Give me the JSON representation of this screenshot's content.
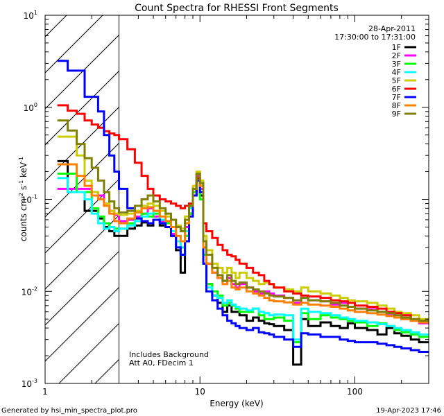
{
  "chart_data": {
    "type": "line",
    "title": "Count Spectra for RHESSI Front Segments",
    "xlabel": "Energy (keV)",
    "ylabel": "counts cm-2 s-1 keV-1",
    "xscale": "log",
    "yscale": "log",
    "xlim": [
      1,
      300
    ],
    "ylim": [
      0.001,
      10
    ],
    "x_ticks": [
      "1",
      "10",
      "100"
    ],
    "y_ticks": [
      {
        "base": "10",
        "exp": "-3"
      },
      {
        "base": "10",
        "exp": "-2"
      },
      {
        "base": "10",
        "exp": "-1"
      },
      {
        "base": "10",
        "exp": "0"
      },
      {
        "base": "10",
        "exp": "1"
      }
    ],
    "hatched_region_upper_keV": 3,
    "date": "28-Apr-2011",
    "time_range": "17:30:00 to 17:31:00",
    "notes": [
      "Includes Background",
      "Att A0, FDecim 1"
    ],
    "footer_left": "Generated by hsi_min_spectra_plot.pro",
    "footer_right": "19-Apr-2023 17:46",
    "energy_edges": [
      1.2,
      1.4,
      1.6,
      1.8,
      2.0,
      2.2,
      2.4,
      2.6,
      2.8,
      3.0,
      3.4,
      3.8,
      4.2,
      4.6,
      5.0,
      5.5,
      6.0,
      6.5,
      7.0,
      7.5,
      8.0,
      8.5,
      9.0,
      9.5,
      10.0,
      10.5,
      11.0,
      12,
      13,
      14,
      15,
      16,
      17,
      18,
      20,
      22,
      24,
      26,
      28,
      30,
      35,
      40,
      45,
      50,
      60,
      70,
      80,
      90,
      100,
      120,
      140,
      160,
      180,
      200,
      230,
      260,
      300
    ],
    "series": [
      {
        "name": "1F",
        "color": "#000000",
        "values": [
          0.26,
          0.12,
          0.12,
          0.075,
          0.075,
          0.062,
          0.05,
          0.045,
          0.04,
          0.04,
          0.048,
          0.052,
          0.056,
          0.052,
          0.06,
          0.052,
          0.05,
          0.04,
          0.028,
          0.016,
          0.04,
          0.07,
          0.12,
          0.17,
          0.11,
          0.02,
          0.012,
          0.009,
          0.0075,
          0.006,
          0.007,
          0.006,
          0.006,
          0.0055,
          0.0048,
          0.0052,
          0.0048,
          0.0045,
          0.0044,
          0.0042,
          0.0038,
          0.0016,
          0.005,
          0.0042,
          0.0046,
          0.0042,
          0.004,
          0.0045,
          0.004,
          0.0038,
          0.0034,
          0.004,
          0.0035,
          0.0033,
          0.003,
          0.0028
        ]
      },
      {
        "name": "2F",
        "color": "#ff00ff",
        "values": [
          0.13,
          0.13,
          0.13,
          0.13,
          0.12,
          0.11,
          0.09,
          0.075,
          0.068,
          0.058,
          0.06,
          0.065,
          0.07,
          0.08,
          0.065,
          0.058,
          0.05,
          0.042,
          0.035,
          0.03,
          0.05,
          0.08,
          0.12,
          0.18,
          0.13,
          0.03,
          0.02,
          0.016,
          0.014,
          0.013,
          0.014,
          0.012,
          0.011,
          0.012,
          0.011,
          0.01,
          0.0095,
          0.01,
          0.0095,
          0.009,
          0.0085,
          0.0075,
          0.0085,
          0.008,
          0.0078,
          0.0072,
          0.0075,
          0.0068,
          0.0065,
          0.0064,
          0.006,
          0.0055,
          0.0052,
          0.005,
          0.0048,
          0.0045
        ]
      },
      {
        "name": "3F",
        "color": "#00ff00",
        "values": [
          0.19,
          0.19,
          0.12,
          0.12,
          0.08,
          0.065,
          0.055,
          0.05,
          0.048,
          0.048,
          0.055,
          0.062,
          0.07,
          0.065,
          0.07,
          0.06,
          0.055,
          0.045,
          0.035,
          0.025,
          0.04,
          0.07,
          0.12,
          0.17,
          0.1,
          0.025,
          0.012,
          0.01,
          0.009,
          0.007,
          0.0075,
          0.007,
          0.0065,
          0.006,
          0.006,
          0.0065,
          0.0055,
          0.005,
          0.005,
          0.0052,
          0.0048,
          0.0028,
          0.0058,
          0.005,
          0.0055,
          0.0052,
          0.005,
          0.0048,
          0.0046,
          0.0042,
          0.0045,
          0.0042,
          0.0038,
          0.0036,
          0.0034,
          0.0032
        ]
      },
      {
        "name": "4F",
        "color": "#00ffff",
        "values": [
          0.17,
          0.12,
          0.12,
          0.1,
          0.07,
          0.055,
          0.048,
          0.05,
          0.045,
          0.048,
          0.052,
          0.058,
          0.065,
          0.07,
          0.075,
          0.06,
          0.05,
          0.045,
          0.035,
          0.03,
          0.045,
          0.08,
          0.13,
          0.19,
          0.12,
          0.02,
          0.011,
          0.009,
          0.0085,
          0.0075,
          0.008,
          0.0072,
          0.0068,
          0.0065,
          0.0062,
          0.0065,
          0.006,
          0.0058,
          0.0055,
          0.0056,
          0.0055,
          0.003,
          0.0065,
          0.006,
          0.0058,
          0.0055,
          0.0052,
          0.005,
          0.0048,
          0.0046,
          0.0044,
          0.0042,
          0.004,
          0.0038,
          0.0036,
          0.0034
        ]
      },
      {
        "name": "5F",
        "color": "#cccc00",
        "values": [
          0.48,
          0.48,
          0.3,
          0.16,
          0.12,
          0.1,
          0.09,
          0.075,
          0.07,
          0.068,
          0.07,
          0.075,
          0.085,
          0.09,
          0.085,
          0.075,
          0.065,
          0.06,
          0.052,
          0.048,
          0.065,
          0.09,
          0.14,
          0.2,
          0.16,
          0.04,
          0.028,
          0.02,
          0.018,
          0.016,
          0.018,
          0.016,
          0.014,
          0.016,
          0.014,
          0.013,
          0.012,
          0.0125,
          0.012,
          0.011,
          0.0105,
          0.01,
          0.011,
          0.01,
          0.0095,
          0.009,
          0.0085,
          0.008,
          0.0078,
          0.0075,
          0.007,
          0.0065,
          0.006,
          0.0058,
          0.0055,
          0.005
        ]
      },
      {
        "name": "6F",
        "color": "#ff0000",
        "values": [
          1.05,
          0.92,
          0.85,
          0.72,
          0.65,
          0.6,
          0.55,
          0.52,
          0.5,
          0.45,
          0.35,
          0.25,
          0.18,
          0.13,
          0.11,
          0.1,
          0.095,
          0.09,
          0.085,
          0.08,
          0.085,
          0.09,
          0.11,
          0.17,
          0.14,
          0.055,
          0.045,
          0.038,
          0.032,
          0.028,
          0.025,
          0.024,
          0.022,
          0.02,
          0.018,
          0.016,
          0.015,
          0.013,
          0.012,
          0.011,
          0.01,
          0.0095,
          0.009,
          0.0088,
          0.0085,
          0.008,
          0.0078,
          0.0075,
          0.007,
          0.0068,
          0.0065,
          0.006,
          0.0058,
          0.0055,
          0.005,
          0.0048
        ]
      },
      {
        "name": "7F",
        "color": "#0000ff",
        "values": [
          3.2,
          2.5,
          2.5,
          1.3,
          1.3,
          0.9,
          0.5,
          0.3,
          0.2,
          0.13,
          0.08,
          0.062,
          0.058,
          0.055,
          0.06,
          0.055,
          0.05,
          0.04,
          0.03,
          0.025,
          0.035,
          0.065,
          0.11,
          0.16,
          0.12,
          0.02,
          0.01,
          0.008,
          0.0065,
          0.0055,
          0.0048,
          0.0045,
          0.0042,
          0.004,
          0.0038,
          0.004,
          0.0036,
          0.0035,
          0.0034,
          0.0032,
          0.003,
          0.0025,
          0.0035,
          0.0034,
          0.0032,
          0.0032,
          0.003,
          0.0029,
          0.0028,
          0.0028,
          0.0027,
          0.0026,
          0.0025,
          0.0024,
          0.0023,
          0.0022
        ]
      },
      {
        "name": "8F",
        "color": "#ff8000",
        "values": [
          0.24,
          0.24,
          0.18,
          0.14,
          0.11,
          0.1,
          0.085,
          0.07,
          0.058,
          0.055,
          0.062,
          0.072,
          0.08,
          0.082,
          0.075,
          0.065,
          0.058,
          0.05,
          0.04,
          0.035,
          0.055,
          0.085,
          0.13,
          0.19,
          0.14,
          0.03,
          0.02,
          0.016,
          0.014,
          0.012,
          0.013,
          0.011,
          0.0105,
          0.011,
          0.01,
          0.0095,
          0.009,
          0.0085,
          0.008,
          0.0078,
          0.0076,
          0.0072,
          0.0075,
          0.0072,
          0.007,
          0.0068,
          0.0065,
          0.0062,
          0.006,
          0.0058,
          0.0056,
          0.0054,
          0.0052,
          0.005,
          0.0048,
          0.0046
        ]
      },
      {
        "name": "9F",
        "color": "#808000",
        "values": [
          0.72,
          0.56,
          0.4,
          0.28,
          0.22,
          0.16,
          0.12,
          0.095,
          0.08,
          0.072,
          0.075,
          0.085,
          0.1,
          0.11,
          0.095,
          0.08,
          0.07,
          0.06,
          0.05,
          0.045,
          0.06,
          0.085,
          0.13,
          0.19,
          0.15,
          0.035,
          0.025,
          0.018,
          0.015,
          0.013,
          0.015,
          0.013,
          0.012,
          0.0125,
          0.011,
          0.0105,
          0.01,
          0.0095,
          0.009,
          0.0088,
          0.0085,
          0.008,
          0.0085,
          0.008,
          0.0078,
          0.0075,
          0.007,
          0.0068,
          0.0065,
          0.0062,
          0.006,
          0.0058,
          0.0055,
          0.0052,
          0.005,
          0.0048
        ]
      }
    ]
  }
}
